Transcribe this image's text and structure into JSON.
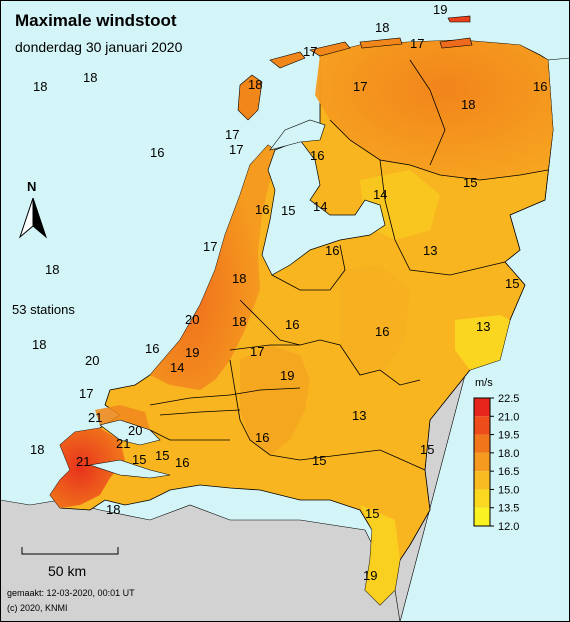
{
  "title": "Maximale windstoot",
  "subtitle": "donderdag 30 januari 2020",
  "station_count": "53 stations",
  "north_label": "N",
  "scale_label": "50 km",
  "footer": {
    "made": "gemaakt: 12-03-2020, 00:01 UT",
    "copyright": "(c) 2020, KNMI"
  },
  "colors": {
    "sea": "#d4f5f7",
    "land_abroad": "#d2d2d2"
  },
  "legend": {
    "unit": "m/s",
    "ticks": [
      "22.5",
      "21.0",
      "19.5",
      "18.0",
      "16.5",
      "15.0",
      "13.5",
      "12.0"
    ],
    "colors": [
      "#e8251c",
      "#ee4c1b",
      "#f1761b",
      "#f59a1f",
      "#f8bb20",
      "#f9d81f",
      "#fbf223"
    ]
  },
  "stations": [
    {
      "value": "19"
    },
    {
      "value": "18"
    },
    {
      "value": "17"
    },
    {
      "value": "17"
    },
    {
      "value": "18"
    },
    {
      "value": "17"
    },
    {
      "value": "16"
    },
    {
      "value": "18"
    },
    {
      "value": "18"
    },
    {
      "value": "17"
    },
    {
      "value": "18"
    },
    {
      "value": "17"
    },
    {
      "value": "16"
    },
    {
      "value": "16"
    },
    {
      "value": "15"
    },
    {
      "value": "16"
    },
    {
      "value": "14"
    },
    {
      "value": "15"
    },
    {
      "value": "14"
    },
    {
      "value": "17"
    },
    {
      "value": "18"
    },
    {
      "value": "13"
    },
    {
      "value": "18"
    },
    {
      "value": "15"
    },
    {
      "value": "16"
    },
    {
      "value": "13"
    },
    {
      "value": "20"
    },
    {
      "value": "16"
    },
    {
      "value": "16"
    },
    {
      "value": "16"
    },
    {
      "value": "19"
    },
    {
      "value": "17"
    },
    {
      "value": "19"
    },
    {
      "value": "14"
    },
    {
      "value": "20"
    },
    {
      "value": "17"
    },
    {
      "value": "21"
    },
    {
      "value": "13"
    },
    {
      "value": "21"
    },
    {
      "value": "16"
    },
    {
      "value": "15"
    },
    {
      "value": "15"
    },
    {
      "value": "21"
    },
    {
      "value": "15"
    },
    {
      "value": "16"
    },
    {
      "value": "15"
    },
    {
      "value": "15"
    },
    {
      "value": "19"
    },
    {
      "value": "20"
    },
    {
      "value": "18"
    },
    {
      "value": "18"
    },
    {
      "value": "18"
    },
    {
      "value": "18"
    }
  ]
}
